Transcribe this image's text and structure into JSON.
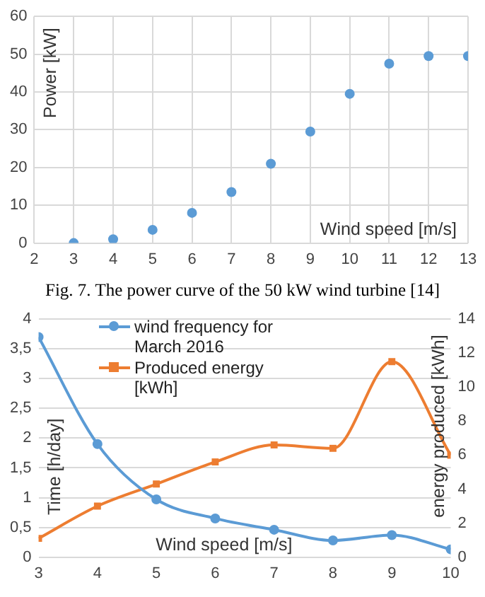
{
  "chart_data": [
    {
      "type": "scatter",
      "xlabel": "Wind speed [m/s]",
      "ylabel": "Power [kW]",
      "x": [
        3,
        4,
        5,
        6,
        7,
        8,
        9,
        10,
        11,
        12,
        13
      ],
      "series": [
        {
          "color": "#5b9bd5",
          "values": [
            0,
            1,
            3.5,
            8,
            13.5,
            21,
            29.5,
            39.5,
            47.5,
            49.5,
            49.5
          ]
        }
      ],
      "xlim": [
        2,
        13
      ],
      "xticks": [
        2,
        3,
        4,
        5,
        6,
        7,
        8,
        9,
        10,
        11,
        12,
        13
      ],
      "ylim": [
        0,
        60
      ],
      "yticks": [
        0,
        10,
        20,
        30,
        40,
        50,
        60
      ],
      "grid": true,
      "marker": "circle",
      "legend": false,
      "annotations": [
        "Fig. 7. The power curve of the 50 kW wind turbine [14]"
      ]
    },
    {
      "type": "line",
      "xlabel": "Wind speed [m/s]",
      "ylabel": "Time [h/day]",
      "y2label": "energy produced [kWh]",
      "x": [
        3,
        4,
        5,
        6,
        7,
        8,
        9,
        10
      ],
      "series": [
        {
          "name": "wind frequency for March 2016",
          "color": "#5b9bd5",
          "marker": "circle",
          "values": [
            3.7,
            1.9,
            0.97,
            0.65,
            0.46,
            0.28,
            0.37,
            0.13
          ]
        },
        {
          "name": "Produced energy [kWh]",
          "color": "#ed7d31",
          "marker": "square",
          "axis": "y2",
          "values": [
            1.1,
            3.0,
            4.3,
            5.6,
            6.6,
            6.4,
            11.5,
            6.0
          ]
        }
      ],
      "xlim": [
        3,
        10
      ],
      "xticks": [
        3,
        4,
        5,
        6,
        7,
        8,
        9,
        10
      ],
      "ylim": [
        0,
        4
      ],
      "yticks": [
        0,
        {
          "value": 0.5,
          "label": "0,5"
        },
        1,
        {
          "value": 1.5,
          "label": "1,5"
        },
        2,
        {
          "value": 2.5,
          "label": "2,5"
        },
        3,
        {
          "value": 3.5,
          "label": "3,5"
        },
        4
      ],
      "y2lim": [
        0,
        14
      ],
      "y2ticks": [
        0,
        2,
        4,
        6,
        8,
        10,
        12,
        14
      ],
      "grid": "y",
      "legend": "top left"
    }
  ]
}
